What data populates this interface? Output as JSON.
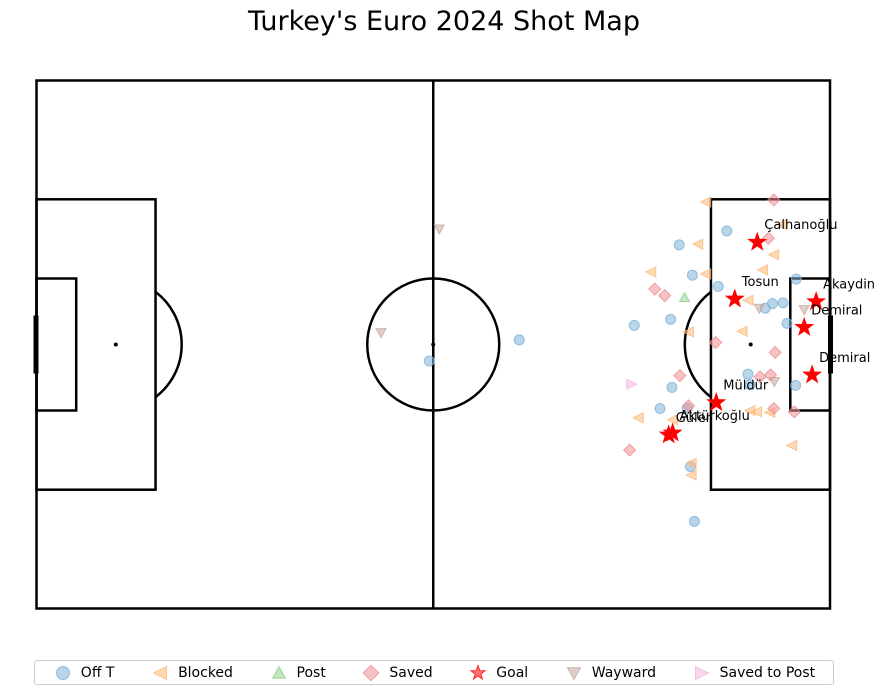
{
  "chart_data": {
    "type": "scatter",
    "title": "Turkey's Euro 2024 Shot Map",
    "xlim": [
      0,
      120
    ],
    "ylim": [
      0,
      80
    ],
    "outcomes": [
      {
        "name": "Off T",
        "color": "#7fb2d8",
        "marker": "circle"
      },
      {
        "name": "Blocked",
        "color": "#fdb97a",
        "marker": "triangle-left"
      },
      {
        "name": "Post",
        "color": "#8fd18f",
        "marker": "triangle-up"
      },
      {
        "name": "Saved",
        "color": "#ef8f92",
        "marker": "diamond"
      },
      {
        "name": "Goal",
        "color": "#ff0000",
        "marker": "star"
      },
      {
        "name": "Wayward",
        "color": "#c7a69f",
        "marker": "triangle-down"
      },
      {
        "name": "Saved to Post",
        "color": "#f3b6e0",
        "marker": "triangle-right"
      }
    ],
    "shots": [
      {
        "outcome": "Off T",
        "x": 104.4,
        "y": 57.2
      },
      {
        "outcome": "Off T",
        "x": 97.2,
        "y": 55.1
      },
      {
        "outcome": "Off T",
        "x": 99.2,
        "y": 50.5
      },
      {
        "outcome": "Off T",
        "x": 103.1,
        "y": 48.8
      },
      {
        "outcome": "Off T",
        "x": 114.9,
        "y": 49.9
      },
      {
        "outcome": "Off T",
        "x": 95.9,
        "y": 43.8
      },
      {
        "outcome": "Off T",
        "x": 90.4,
        "y": 42.9
      },
      {
        "outcome": "Off T",
        "x": 110.2,
        "y": 45.5
      },
      {
        "outcome": "Off T",
        "x": 111.3,
        "y": 46.2
      },
      {
        "outcome": "Off T",
        "x": 112.9,
        "y": 46.3
      },
      {
        "outcome": "Off T",
        "x": 113.5,
        "y": 43.2
      },
      {
        "outcome": "Off T",
        "x": 73.0,
        "y": 40.7
      },
      {
        "outcome": "Off T",
        "x": 59.4,
        "y": 37.5
      },
      {
        "outcome": "Off T",
        "x": 107.6,
        "y": 35.5
      },
      {
        "outcome": "Off T",
        "x": 107.9,
        "y": 33.9
      },
      {
        "outcome": "Off T",
        "x": 96.1,
        "y": 33.5
      },
      {
        "outcome": "Off T",
        "x": 114.8,
        "y": 33.8
      },
      {
        "outcome": "Off T",
        "x": 94.3,
        "y": 30.3
      },
      {
        "outcome": "Off T",
        "x": 98.4,
        "y": 30.3
      },
      {
        "outcome": "Off T",
        "x": 98.9,
        "y": 21.5
      },
      {
        "outcome": "Off T",
        "x": 99.5,
        "y": 13.2
      },
      {
        "outcome": "Blocked",
        "x": 101.2,
        "y": 61.6
      },
      {
        "outcome": "Blocked",
        "x": 112.7,
        "y": 58.2
      },
      {
        "outcome": "Blocked",
        "x": 111.5,
        "y": 53.6
      },
      {
        "outcome": "Blocked",
        "x": 100.0,
        "y": 55.2
      },
      {
        "outcome": "Blocked",
        "x": 109.8,
        "y": 51.3
      },
      {
        "outcome": "Blocked",
        "x": 92.9,
        "y": 51.0
      },
      {
        "outcome": "Blocked",
        "x": 101.2,
        "y": 50.7
      },
      {
        "outcome": "Blocked",
        "x": 107.6,
        "y": 46.7
      },
      {
        "outcome": "Blocked",
        "x": 106.7,
        "y": 42.0
      },
      {
        "outcome": "Blocked",
        "x": 98.6,
        "y": 41.9
      },
      {
        "outcome": "Blocked",
        "x": 107.9,
        "y": 30.0
      },
      {
        "outcome": "Blocked",
        "x": 108.9,
        "y": 29.8
      },
      {
        "outcome": "Blocked",
        "x": 110.9,
        "y": 29.7
      },
      {
        "outcome": "Blocked",
        "x": 91.0,
        "y": 28.9
      },
      {
        "outcome": "Blocked",
        "x": 96.2,
        "y": 28.6
      },
      {
        "outcome": "Blocked",
        "x": 114.2,
        "y": 24.7
      },
      {
        "outcome": "Blocked",
        "x": 99.0,
        "y": 22.0
      },
      {
        "outcome": "Blocked",
        "x": 99.0,
        "y": 20.2
      },
      {
        "outcome": "Post",
        "x": 98.0,
        "y": 47.1
      },
      {
        "outcome": "Saved",
        "x": 111.5,
        "y": 61.9
      },
      {
        "outcome": "Saved",
        "x": 110.7,
        "y": 56.1
      },
      {
        "outcome": "Saved",
        "x": 93.5,
        "y": 48.4
      },
      {
        "outcome": "Saved",
        "x": 95.0,
        "y": 47.4
      },
      {
        "outcome": "Saved",
        "x": 102.7,
        "y": 40.3
      },
      {
        "outcome": "Saved",
        "x": 111.7,
        "y": 38.8
      },
      {
        "outcome": "Saved",
        "x": 97.3,
        "y": 35.3
      },
      {
        "outcome": "Saved",
        "x": 109.4,
        "y": 35.1
      },
      {
        "outcome": "Saved",
        "x": 111.0,
        "y": 35.4
      },
      {
        "outcome": "Saved",
        "x": 98.6,
        "y": 30.7
      },
      {
        "outcome": "Saved",
        "x": 111.5,
        "y": 30.3
      },
      {
        "outcome": "Saved",
        "x": 114.6,
        "y": 29.8
      },
      {
        "outcome": "Saved",
        "x": 89.7,
        "y": 24.0
      },
      {
        "outcome": "Goal",
        "x": 109.0,
        "y": 55.5,
        "player": "Çalhanoğlu"
      },
      {
        "outcome": "Goal",
        "x": 105.6,
        "y": 46.9,
        "player": "Tosun"
      },
      {
        "outcome": "Goal",
        "x": 117.9,
        "y": 46.5,
        "player": "Akaydin"
      },
      {
        "outcome": "Goal",
        "x": 116.1,
        "y": 42.6,
        "player": "Demiral"
      },
      {
        "outcome": "Goal",
        "x": 117.3,
        "y": 35.4,
        "player": "Demiral"
      },
      {
        "outcome": "Goal",
        "x": 102.8,
        "y": 31.2,
        "player": "Müldür"
      },
      {
        "outcome": "Goal",
        "x": 96.2,
        "y": 26.6,
        "player": "Aktürkoğlu"
      },
      {
        "outcome": "Goal",
        "x": 95.6,
        "y": 26.3,
        "player": "Güler"
      },
      {
        "outcome": "Wayward",
        "x": 60.9,
        "y": 57.5
      },
      {
        "outcome": "Wayward",
        "x": 52.1,
        "y": 41.8
      },
      {
        "outcome": "Wayward",
        "x": 109.3,
        "y": 45.5
      },
      {
        "outcome": "Wayward",
        "x": 116.1,
        "y": 45.3
      },
      {
        "outcome": "Wayward",
        "x": 111.6,
        "y": 34.4
      },
      {
        "outcome": "Saved to Post",
        "x": 90.0,
        "y": 34.0
      }
    ]
  }
}
